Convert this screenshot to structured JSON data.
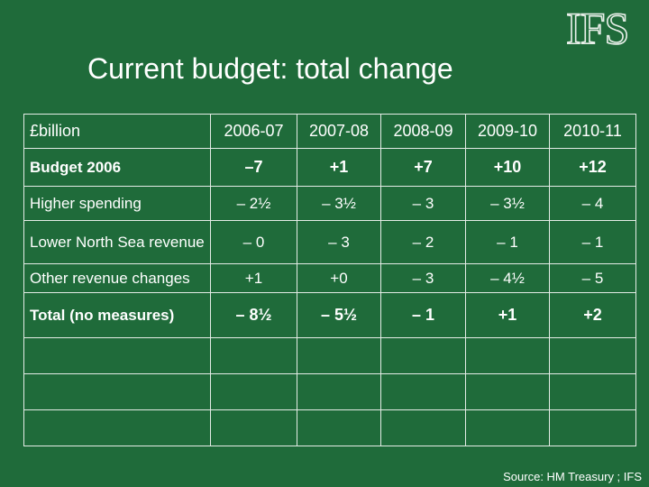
{
  "logo": "IFS",
  "title": "Current budget: total change",
  "table": {
    "corner": "£billion",
    "years": [
      "2006-07",
      "2007-08",
      "2008-09",
      "2009-10",
      "2010-11"
    ],
    "rows": [
      {
        "label": "Budget 2006",
        "values": [
          "–7",
          "+1",
          "+7",
          "+10",
          "+12"
        ]
      },
      {
        "label": "Higher spending",
        "values": [
          "– 2½",
          "– 3½",
          "– 3",
          "– 3½",
          "– 4"
        ]
      },
      {
        "label": "Lower North Sea revenue",
        "values": [
          "– 0",
          "– 3",
          "– 2",
          "– 1",
          "– 1"
        ]
      },
      {
        "label": "Other revenue changes",
        "values": [
          "+1",
          "+0",
          "– 3",
          "– 4½",
          "– 5"
        ]
      },
      {
        "label": "Total (no measures)",
        "values": [
          "– 8½",
          "– 5½",
          "– 1",
          "+1",
          "+2"
        ]
      }
    ]
  },
  "source": "Source: HM Treasury ; IFS"
}
